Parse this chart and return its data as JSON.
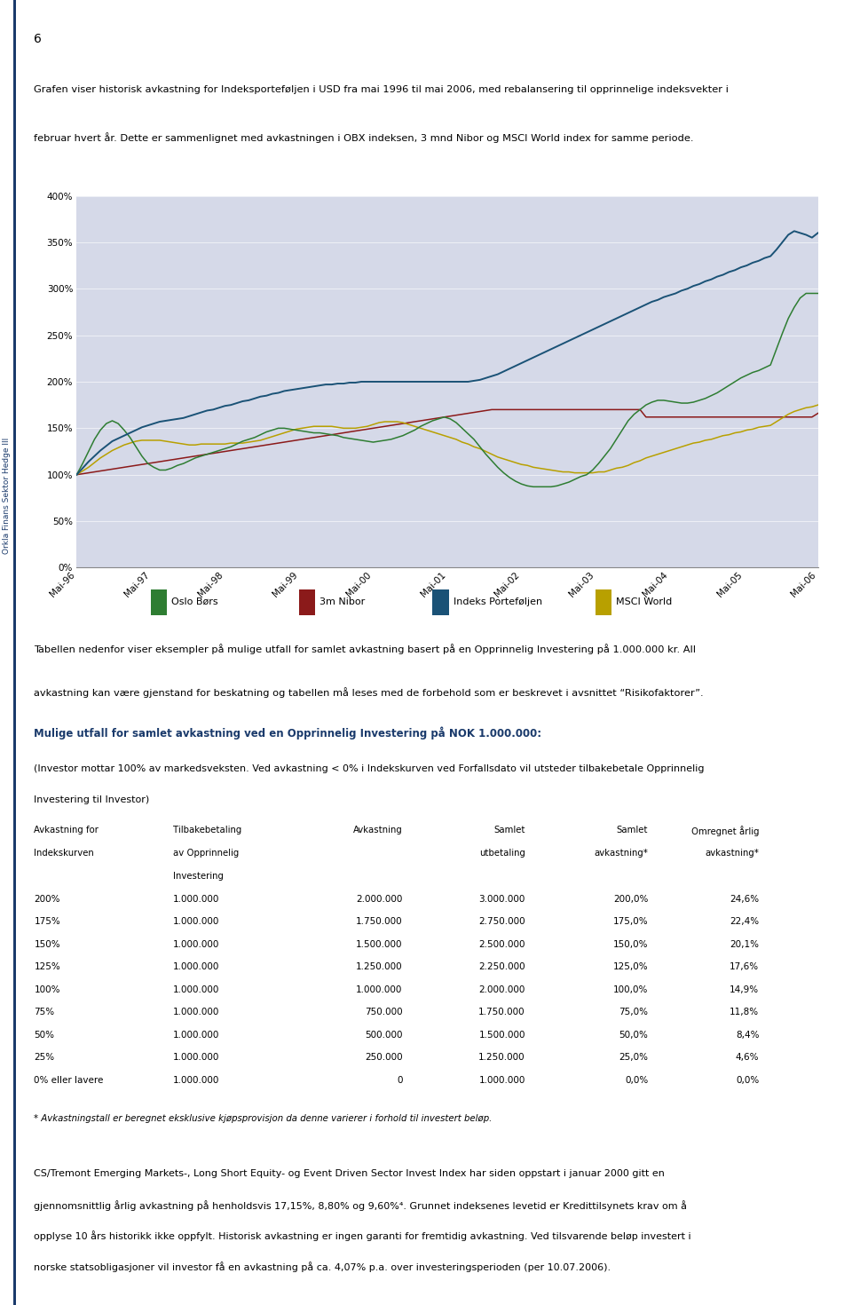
{
  "page_number": "6",
  "sidebar_text": "Orkla Finans Sektor Hedge III",
  "intro_text_line1": "Grafen viser historisk avkastning for Indeksporteføljen i USD fra mai 1996 til mai 2006, med rebalansering til opprinnelige indeksvekter i",
  "intro_text_line2": "februar hvert år. Dette er sammenlignet med avkastningen i OBX indeksen, 3 mnd Nibor og MSCI World index for samme periode.",
  "chart_bg": "#d5d9e8",
  "ylim": [
    0,
    400
  ],
  "yticks": [
    0,
    50,
    100,
    150,
    200,
    250,
    300,
    350,
    400
  ],
  "ytick_labels": [
    "0%",
    "50%",
    "100%",
    "150%",
    "200%",
    "250%",
    "300%",
    "350%",
    "400%"
  ],
  "xtick_labels": [
    "Mai-96",
    "Mai-97",
    "Mai-98",
    "Mai-99",
    "Mai-00",
    "Mai-01",
    "Mai-02",
    "Mai-03",
    "Mai-04",
    "Mai-05",
    "Mai-06"
  ],
  "oslo_bors": [
    100,
    112,
    125,
    138,
    148,
    155,
    158,
    155,
    148,
    140,
    130,
    120,
    112,
    108,
    105,
    105,
    107,
    110,
    112,
    115,
    118,
    120,
    122,
    124,
    126,
    128,
    130,
    133,
    136,
    138,
    140,
    143,
    146,
    148,
    150,
    150,
    149,
    148,
    147,
    146,
    145,
    145,
    144,
    143,
    142,
    140,
    139,
    138,
    137,
    136,
    135,
    136,
    137,
    138,
    140,
    142,
    145,
    148,
    152,
    155,
    158,
    160,
    162,
    160,
    156,
    150,
    144,
    138,
    130,
    122,
    115,
    108,
    102,
    97,
    93,
    90,
    88,
    87,
    87,
    87,
    87,
    88,
    90,
    92,
    95,
    98,
    100,
    105,
    112,
    120,
    128,
    138,
    148,
    158,
    165,
    170,
    175,
    178,
    180,
    180,
    179,
    178,
    177,
    177,
    178,
    180,
    182,
    185,
    188,
    192,
    196,
    200,
    204,
    207,
    210,
    212,
    215,
    218,
    235,
    252,
    268,
    280,
    290,
    295,
    295,
    295
  ],
  "nibor": [
    100,
    101,
    102,
    103,
    104,
    105,
    106,
    107,
    108,
    109,
    110,
    111,
    112,
    113,
    114,
    115,
    116,
    117,
    118,
    119,
    120,
    121,
    122,
    123,
    124,
    125,
    126,
    127,
    128,
    129,
    130,
    131,
    132,
    133,
    134,
    135,
    136,
    137,
    138,
    139,
    140,
    141,
    142,
    143,
    144,
    145,
    146,
    147,
    148,
    149,
    150,
    151,
    152,
    153,
    154,
    155,
    156,
    157,
    158,
    159,
    160,
    161,
    162,
    163,
    164,
    165,
    166,
    167,
    168,
    169,
    170,
    170,
    170,
    170,
    170,
    170,
    170,
    170,
    170,
    170,
    170,
    170,
    170,
    170,
    170,
    170,
    170,
    170,
    170,
    170,
    170,
    170,
    170,
    170,
    170,
    170,
    162,
    162,
    162,
    162,
    162,
    162,
    162,
    162,
    162,
    162,
    162,
    162,
    162,
    162,
    162,
    162,
    162,
    162,
    162,
    162,
    162,
    162,
    162,
    162,
    162,
    162,
    162,
    162,
    162,
    166
  ],
  "indeks_portefoljen": [
    100,
    107,
    114,
    120,
    126,
    131,
    136,
    139,
    142,
    145,
    148,
    151,
    153,
    155,
    157,
    158,
    159,
    160,
    161,
    163,
    165,
    167,
    169,
    170,
    172,
    174,
    175,
    177,
    179,
    180,
    182,
    184,
    185,
    187,
    188,
    190,
    191,
    192,
    193,
    194,
    195,
    196,
    197,
    197,
    198,
    198,
    199,
    199,
    200,
    200,
    200,
    200,
    200,
    200,
    200,
    200,
    200,
    200,
    200,
    200,
    200,
    200,
    200,
    200,
    200,
    200,
    200,
    201,
    202,
    204,
    206,
    208,
    211,
    214,
    217,
    220,
    223,
    226,
    229,
    232,
    235,
    238,
    241,
    244,
    247,
    250,
    253,
    256,
    259,
    262,
    265,
    268,
    271,
    274,
    277,
    280,
    283,
    286,
    288,
    291,
    293,
    295,
    298,
    300,
    303,
    305,
    308,
    310,
    313,
    315,
    318,
    320,
    323,
    325,
    328,
    330,
    333,
    335,
    342,
    350,
    358,
    362,
    360,
    358,
    355,
    360
  ],
  "msci_world": [
    100,
    104,
    108,
    113,
    118,
    122,
    126,
    129,
    132,
    134,
    136,
    137,
    137,
    137,
    137,
    136,
    135,
    134,
    133,
    132,
    132,
    133,
    133,
    133,
    133,
    133,
    134,
    134,
    134,
    135,
    136,
    137,
    139,
    141,
    143,
    145,
    147,
    149,
    150,
    151,
    152,
    152,
    152,
    152,
    151,
    150,
    150,
    150,
    151,
    152,
    154,
    156,
    157,
    157,
    157,
    156,
    154,
    152,
    150,
    148,
    146,
    144,
    142,
    140,
    138,
    135,
    133,
    130,
    128,
    125,
    122,
    119,
    117,
    115,
    113,
    111,
    110,
    108,
    107,
    106,
    105,
    104,
    103,
    103,
    102,
    102,
    102,
    102,
    103,
    103,
    105,
    107,
    108,
    110,
    113,
    115,
    118,
    120,
    122,
    124,
    126,
    128,
    130,
    132,
    134,
    135,
    137,
    138,
    140,
    142,
    143,
    145,
    146,
    148,
    149,
    151,
    152,
    153,
    157,
    161,
    165,
    168,
    170,
    172,
    173,
    175
  ],
  "series_colors": {
    "oslo_bors": "#2e7d32",
    "nibor": "#8b1a1a",
    "indeks_portefoljen": "#1a5276",
    "msci_world": "#b8a000"
  },
  "legend_labels": [
    "Oslo Børs",
    "3m Nibor",
    "Indeks Porteføljen",
    "MSCI World"
  ],
  "table_title": "Mulige utfall for samlet avkastning ved en Opprinnelig Investering på NOK 1.000.000:",
  "table_subtitle": "(Investor mottar 100% av markedsveksten. Ved avkastning < 0% i Indekskurven ved Forfallsdato vil utsteder tilbakebetale Opprinnelig",
  "table_subtitle2": "Investering til Investor)",
  "table_bg": "#d5d9e8",
  "table_header": [
    "Avkastning for\nIndekskurven",
    "Tilbakebetaling\nav Opprinnelig\nInvestering",
    "Avkastning",
    "Samlet\nutbetaling",
    "Samlet\navkastning*",
    "Omregnet årlig\navkastning*"
  ],
  "table_rows": [
    [
      "200%",
      "1.000.000",
      "2.000.000",
      "3.000.000",
      "200,0%",
      "24,6%"
    ],
    [
      "175%",
      "1.000.000",
      "1.750.000",
      "2.750.000",
      "175,0%",
      "22,4%"
    ],
    [
      "150%",
      "1.000.000",
      "1.500.000",
      "2.500.000",
      "150,0%",
      "20,1%"
    ],
    [
      "125%",
      "1.000.000",
      "1.250.000",
      "2.250.000",
      "125,0%",
      "17,6%"
    ],
    [
      "100%",
      "1.000.000",
      "1.000.000",
      "2.000.000",
      "100,0%",
      "14,9%"
    ],
    [
      "75%",
      "1.000.000",
      "750.000",
      "1.750.000",
      "75,0%",
      "11,8%"
    ],
    [
      "50%",
      "1.000.000",
      "500.000",
      "1.500.000",
      "50,0%",
      "8,4%"
    ],
    [
      "25%",
      "1.000.000",
      "250.000",
      "1.250.000",
      "25,0%",
      "4,6%"
    ],
    [
      "0% eller lavere",
      "1.000.000",
      "0",
      "1.000.000",
      "0,0%",
      "0,0%"
    ]
  ],
  "table_footnote": "* Avkastningstall er beregnet eksklusive kjøpsprovisjon da denne varierer i forhold til investert beløp.",
  "bottom_text_line1": "CS/Tremont Emerging Markets-, Long Short Equity- og Event Driven Sector Invest Index har siden oppstart i januar 2000 gitt en",
  "bottom_text_line2": "gjennomsnittlig årlig avkastning på henholdsvis 17,15%, 8,80% og 9,60%⁴. Grunnet indeksenes levetid er Kredittilsynets krav om å",
  "bottom_text_line3": "opplyse 10 års historikk ikke oppfylt. Historisk avkastning er ingen garanti for fremtidig avkastning. Ved tilsvarende beløp investert i",
  "bottom_text_line4": "norske statsobligasjoner vil investor få en avkastning på ca. 4,07% p.a. over investeringsperioden (per 10.07.2006).",
  "intro2_line1": "Tabellen nedenfor viser eksempler på mulige utfall for samlet avkastning basert på en Opprinnelig Investering på 1.000.000 kr. All",
  "intro2_line2": "avkastning kan være gjenstand for beskatning og tabellen må leses med de forbehold som er beskrevet i avsnittet “Risikofaktorer”."
}
